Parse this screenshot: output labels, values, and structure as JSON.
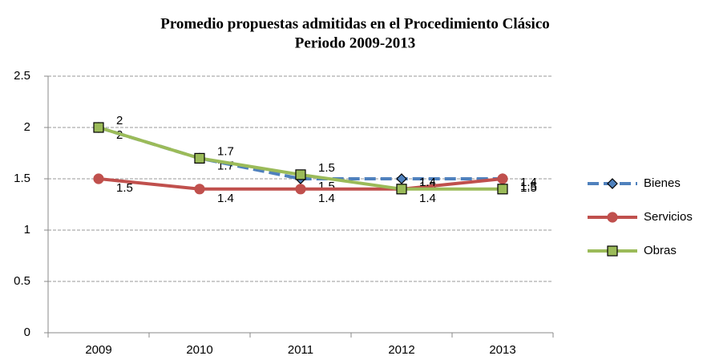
{
  "chart_data": {
    "type": "line",
    "title": "Promedio propuestas admitidas en el Procedimiento Clásico",
    "subtitle": "Periodo 2009-2013",
    "categories": [
      "2009",
      "2010",
      "2011",
      "2012",
      "2013"
    ],
    "series": [
      {
        "name": "Bienes",
        "color": "#4f81bd",
        "marker": "diamond",
        "dashed": true,
        "values": [
          2,
          1.7,
          1.5,
          1.5,
          1.5
        ]
      },
      {
        "name": "Servicios",
        "color": "#c0504d",
        "marker": "circle",
        "dashed": false,
        "values": [
          1.5,
          1.4,
          1.4,
          1.4,
          1.5
        ]
      },
      {
        "name": "Obras",
        "color": "#9bbb59",
        "marker": "square",
        "dashed": false,
        "values": [
          2,
          1.7,
          1.54,
          1.4,
          1.4
        ],
        "value_labels": [
          "2",
          "1.7",
          "1.5",
          "1.4",
          "1.4"
        ]
      }
    ],
    "ylim": [
      0,
      2.5
    ],
    "yticks": [
      0,
      0.5,
      1,
      1.5,
      2,
      2.5
    ],
    "grid": true,
    "legend": "right"
  }
}
